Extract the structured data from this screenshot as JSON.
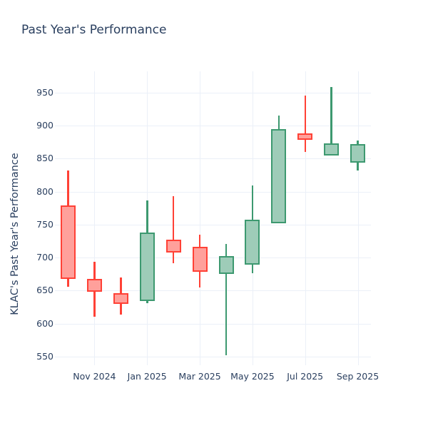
{
  "chart_data": {
    "type": "candlestick",
    "title": "Past Year's Performance",
    "ylabel": "KLAC's Past Year's Performance",
    "xlabel": "",
    "categories": [
      "Oct 2024",
      "Nov 2024",
      "Dec 2024",
      "Jan 2025",
      "Feb 2025",
      "Mar 2025",
      "Apr 2025",
      "May 2025",
      "Jun 2025",
      "Jul 2025",
      "Aug 2025",
      "Sep 2025"
    ],
    "candles": [
      {
        "date": "Oct 2024",
        "open": 779,
        "high": 832,
        "low": 656,
        "close": 668,
        "direction": "decreasing"
      },
      {
        "date": "Nov 2024",
        "open": 668,
        "high": 694,
        "low": 610,
        "close": 648,
        "direction": "decreasing"
      },
      {
        "date": "Dec 2024",
        "open": 646,
        "high": 670,
        "low": 614,
        "close": 630,
        "direction": "decreasing"
      },
      {
        "date": "Jan 2025",
        "open": 634,
        "high": 787,
        "low": 631,
        "close": 738,
        "direction": "increasing"
      },
      {
        "date": "Feb 2025",
        "open": 727,
        "high": 793,
        "low": 692,
        "close": 708,
        "direction": "decreasing"
      },
      {
        "date": "Mar 2025",
        "open": 716,
        "high": 735,
        "low": 655,
        "close": 678,
        "direction": "decreasing"
      },
      {
        "date": "Apr 2025",
        "open": 675,
        "high": 721,
        "low": 552,
        "close": 702,
        "direction": "increasing"
      },
      {
        "date": "May 2025",
        "open": 689,
        "high": 809,
        "low": 676,
        "close": 757,
        "direction": "increasing"
      },
      {
        "date": "Jun 2025",
        "open": 752,
        "high": 915,
        "low": 752,
        "close": 895,
        "direction": "increasing"
      },
      {
        "date": "Jul 2025",
        "open": 888,
        "high": 945,
        "low": 860,
        "close": 878,
        "direction": "decreasing"
      },
      {
        "date": "Aug 2025",
        "open": 855,
        "high": 958,
        "low": 855,
        "close": 873,
        "direction": "increasing"
      },
      {
        "date": "Sep 2025",
        "open": 844,
        "high": 877,
        "low": 832,
        "close": 872,
        "direction": "increasing"
      }
    ],
    "x_tick_labels": [
      "Nov 2024",
      "Jan 2025",
      "Mar 2025",
      "May 2025",
      "Jul 2025",
      "Sep 2025"
    ],
    "x_tick_indices": [
      1,
      3,
      5,
      7,
      9,
      11
    ],
    "y_ticks": [
      550,
      600,
      650,
      700,
      750,
      800,
      850,
      900,
      950
    ],
    "ylim": [
      537,
      982
    ],
    "grid": true,
    "legend": false,
    "colors": {
      "increasing_line": "#3D9970",
      "increasing_fill": "#9eccb8",
      "decreasing_line": "#FF4136",
      "decreasing_fill": "#ffa09b",
      "font": "#2a3f5f",
      "grid": "#ebf0f8",
      "background": "#ffffff"
    }
  }
}
